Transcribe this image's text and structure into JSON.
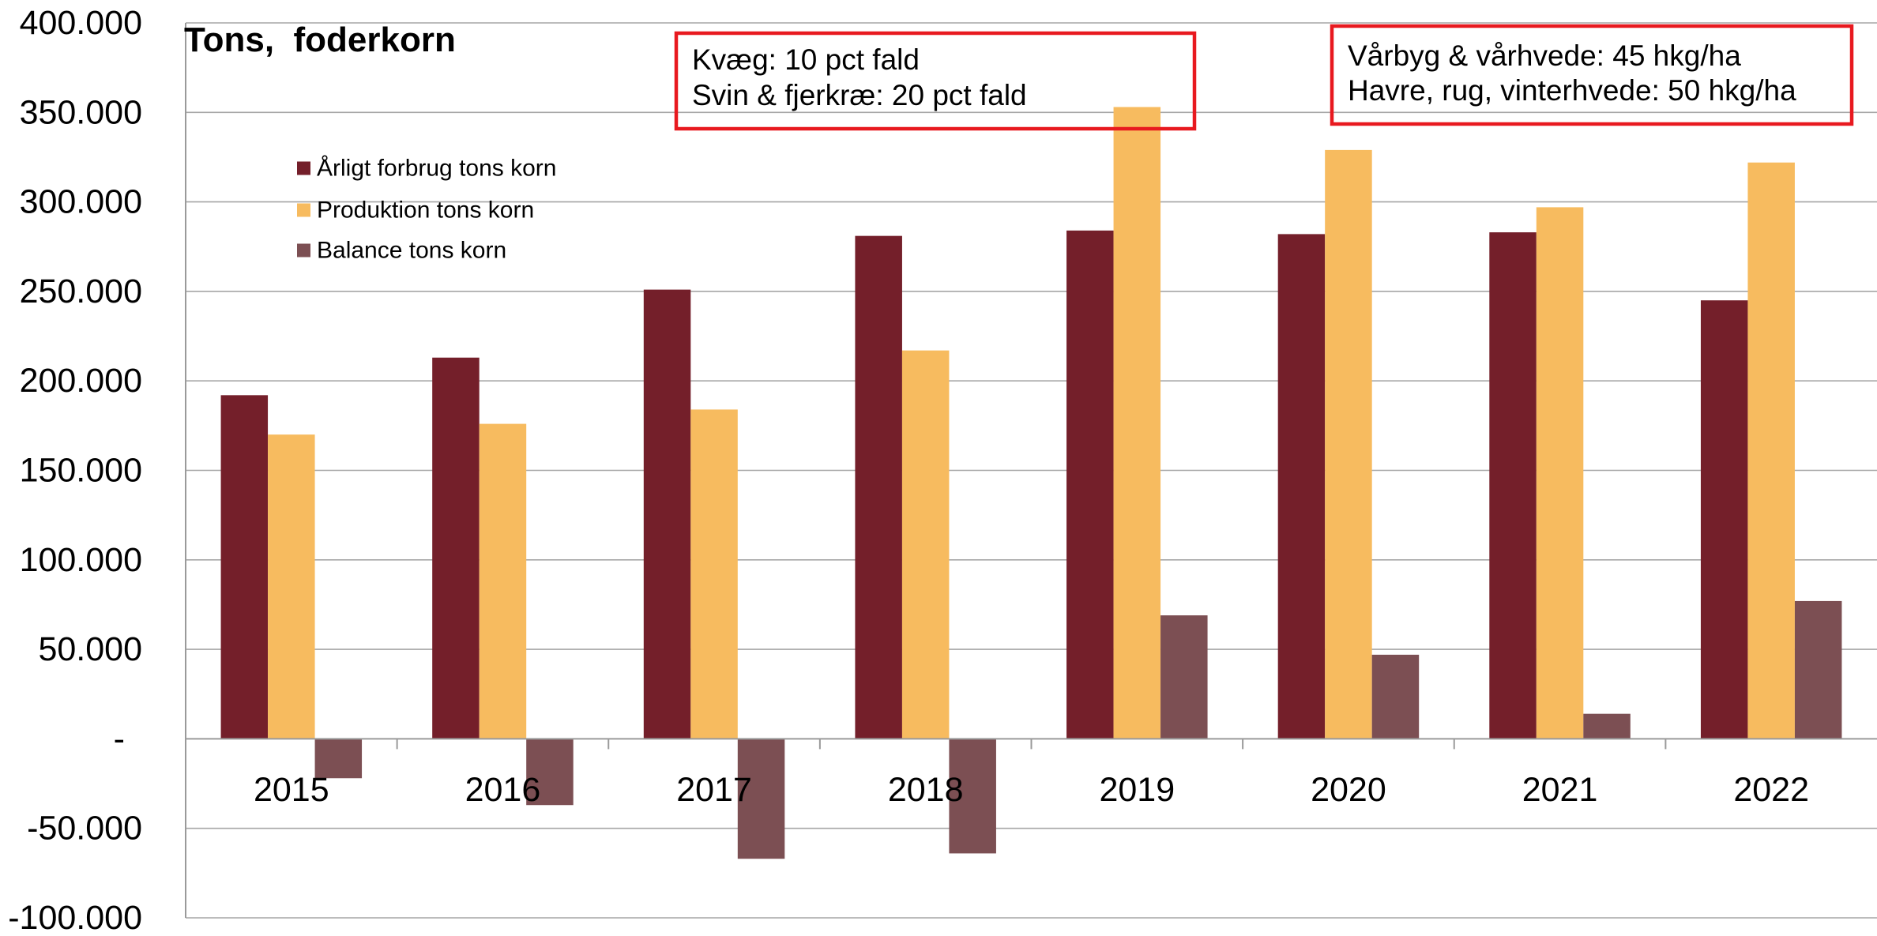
{
  "chart_data": {
    "type": "bar",
    "title": "Tons,  foderkorn",
    "categories": [
      "2015",
      "2016",
      "2017",
      "2018",
      "2019",
      "2020",
      "2021",
      "2022"
    ],
    "series": [
      {
        "name": "Årligt forbrug tons korn",
        "color": "#741F2A",
        "values": [
          192000,
          213000,
          251000,
          281000,
          284000,
          282000,
          283000,
          245000
        ]
      },
      {
        "name": "Produktion tons korn",
        "color": "#F7BB5F",
        "values": [
          170000,
          176000,
          184000,
          217000,
          353000,
          329000,
          297000,
          322000
        ]
      },
      {
        "name": "Balance tons korn",
        "color": "#7C4F53",
        "values": [
          -22000,
          -37000,
          -67000,
          -64000,
          69000,
          47000,
          14000,
          77000
        ]
      }
    ],
    "ylim": [
      -100000,
      400000
    ],
    "yticks": [
      {
        "value": 400000,
        "label": "400.000"
      },
      {
        "value": 350000,
        "label": "350.000"
      },
      {
        "value": 300000,
        "label": "300.000"
      },
      {
        "value": 250000,
        "label": "250.000"
      },
      {
        "value": 200000,
        "label": "200.000"
      },
      {
        "value": 150000,
        "label": "150.000"
      },
      {
        "value": 100000,
        "label": "100.000"
      },
      {
        "value": 50000,
        "label": "50.000"
      },
      {
        "value": 0,
        "label": "-"
      },
      {
        "value": -50000,
        "label": "-50.000"
      },
      {
        "value": -100000,
        "label": "-100.000"
      }
    ],
    "grid": true,
    "legend": "top-left",
    "annotations": [
      {
        "lines": [
          "Kvæg: 10 pct fald",
          "Svin & fjerkræ: 20 pct fald"
        ],
        "border_color": "#E8191F"
      },
      {
        "lines": [
          "Vårbyg & vårhvede: 45 hkg/ha",
          "Havre, rug, vinterhvede: 50 hkg/ha"
        ],
        "border_color": "#E8191F"
      }
    ]
  }
}
